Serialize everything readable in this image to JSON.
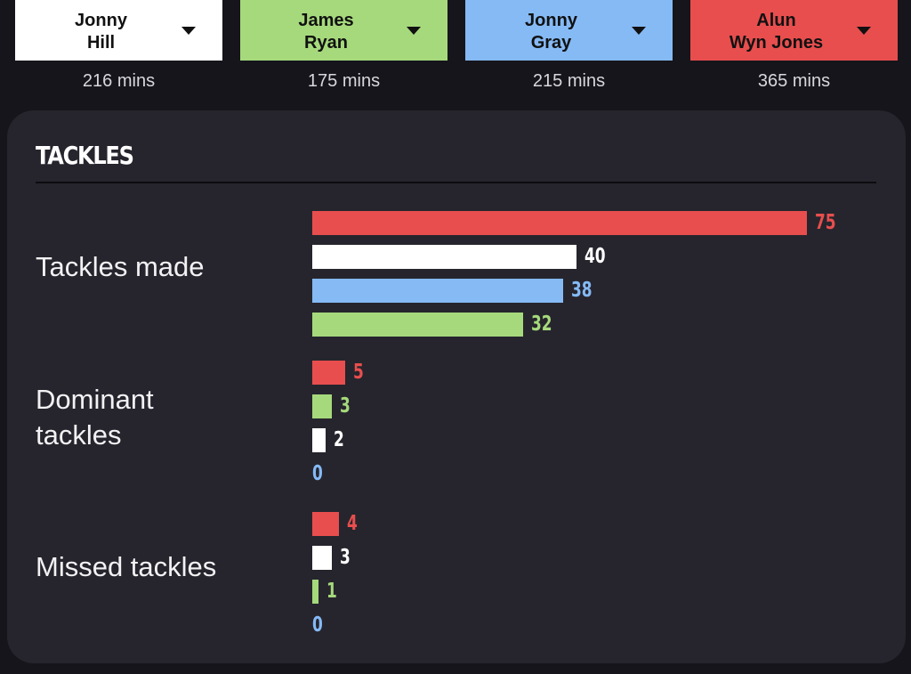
{
  "colors": {
    "background": "#16151b",
    "card": "#26252d",
    "white_player": "#ffffff",
    "green_player": "#a6d97c",
    "blue_player": "#85baf5",
    "red_player": "#e84e4e"
  },
  "players": [
    {
      "first": "Jonny",
      "last": "Hill",
      "minutes": "216 mins",
      "color": "#ffffff",
      "dropdown_icon": "caret-down-icon"
    },
    {
      "first": "James",
      "last": "Ryan",
      "minutes": "175 mins",
      "color": "#a6d97c",
      "dropdown_icon": "caret-down-icon"
    },
    {
      "first": "Jonny",
      "last": "Gray",
      "minutes": "215 mins",
      "color": "#85baf5",
      "dropdown_icon": "caret-down-icon"
    },
    {
      "first": "Alun",
      "last": "Wyn Jones",
      "minutes": "365 mins",
      "color": "#e84e4e",
      "dropdown_icon": "caret-down-icon"
    }
  ],
  "section": {
    "title": "TACKLES"
  },
  "chart_data": {
    "type": "bar",
    "orientation": "horizontal",
    "max_value": 75,
    "groups": [
      {
        "label": "Tackles made",
        "bars": [
          {
            "player": "Alun Wyn Jones",
            "value": 75,
            "color": "#e84e4e"
          },
          {
            "player": "Jonny Hill",
            "value": 40,
            "color": "#ffffff"
          },
          {
            "player": "Jonny Gray",
            "value": 38,
            "color": "#85baf5"
          },
          {
            "player": "James Ryan",
            "value": 32,
            "color": "#a6d97c"
          }
        ]
      },
      {
        "label": "Dominant\ntackles",
        "bars": [
          {
            "player": "Alun Wyn Jones",
            "value": 5,
            "color": "#e84e4e"
          },
          {
            "player": "James Ryan",
            "value": 3,
            "color": "#a6d97c"
          },
          {
            "player": "Jonny Hill",
            "value": 2,
            "color": "#ffffff"
          },
          {
            "player": "Jonny Gray",
            "value": 0,
            "color": "#85baf5"
          }
        ]
      },
      {
        "label": "Missed tackles",
        "bars": [
          {
            "player": "Alun Wyn Jones",
            "value": 4,
            "color": "#e84e4e"
          },
          {
            "player": "Jonny Hill",
            "value": 3,
            "color": "#ffffff"
          },
          {
            "player": "James Ryan",
            "value": 1,
            "color": "#a6d97c"
          },
          {
            "player": "Jonny Gray",
            "value": 0,
            "color": "#85baf5"
          }
        ]
      }
    ]
  }
}
